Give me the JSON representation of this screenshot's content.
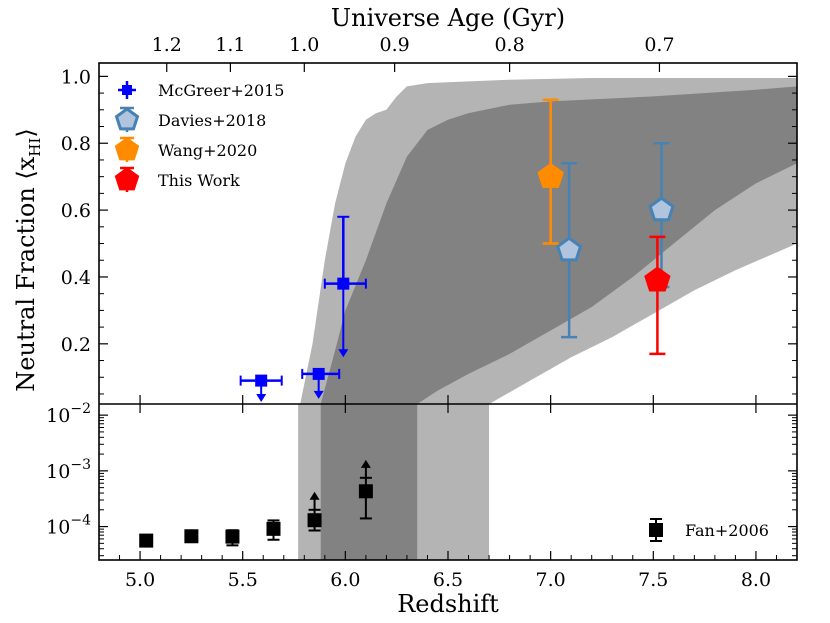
{
  "chart_data": {
    "type": "scatter",
    "title": "",
    "xlabel": "Redshift",
    "top_xlabel": "Universe Age (Gyr)",
    "ylabel": "Neutral Fraction ⟨x",
    "ylabel_sub": "HI",
    "ylabel_close": "⟩",
    "xlim": [
      4.8,
      8.2
    ],
    "x_ticks": [
      5.0,
      5.5,
      6.0,
      6.5,
      7.0,
      7.5,
      8.0
    ],
    "x_tick_labels": [
      "5.0",
      "5.5",
      "6.0",
      "6.5",
      "7.0",
      "7.5",
      "8.0"
    ],
    "top_ticks": [
      {
        "label": "1.2",
        "z": 5.13
      },
      {
        "label": "1.1",
        "z": 5.44
      },
      {
        "label": "1.0",
        "z": 5.8
      },
      {
        "label": "0.9",
        "z": 6.24
      },
      {
        "label": "0.8",
        "z": 6.8
      },
      {
        "label": "0.7",
        "z": 7.53
      }
    ],
    "upper_panel": {
      "yscale": "linear",
      "ylim": [
        0.02,
        1.04
      ],
      "y_ticks": [
        0.2,
        0.4,
        0.6,
        0.8,
        1.0
      ],
      "y_tick_labels": [
        "0.2",
        "0.4",
        "0.6",
        "0.8",
        "1.0"
      ],
      "bands": [
        {
          "name": "outer",
          "color": "#b4b4b4",
          "upper": [
            [
              5.78,
              0.02
            ],
            [
              5.84,
              0.2
            ],
            [
              5.9,
              0.45
            ],
            [
              5.95,
              0.62
            ],
            [
              6.0,
              0.74
            ],
            [
              6.05,
              0.82
            ],
            [
              6.1,
              0.87
            ],
            [
              6.15,
              0.89
            ],
            [
              6.2,
              0.9
            ],
            [
              6.25,
              0.94
            ],
            [
              6.3,
              0.97
            ],
            [
              6.4,
              0.98
            ],
            [
              6.6,
              0.985
            ],
            [
              6.8,
              0.99
            ],
            [
              7.2,
              0.995
            ],
            [
              8.2,
              0.995
            ]
          ],
          "lower": [
            [
              5.78,
              0.02
            ],
            [
              6.7,
              0.02
            ],
            [
              6.9,
              0.09
            ],
            [
              7.1,
              0.16
            ],
            [
              7.3,
              0.22
            ],
            [
              7.5,
              0.29
            ],
            [
              7.7,
              0.36
            ],
            [
              7.9,
              0.42
            ],
            [
              8.2,
              0.5
            ]
          ]
        },
        {
          "name": "inner",
          "color": "#828282",
          "upper": [
            [
              5.88,
              0.02
            ],
            [
              5.95,
              0.18
            ],
            [
              6.0,
              0.3
            ],
            [
              6.1,
              0.45
            ],
            [
              6.2,
              0.62
            ],
            [
              6.3,
              0.76
            ],
            [
              6.4,
              0.84
            ],
            [
              6.5,
              0.87
            ],
            [
              6.6,
              0.89
            ],
            [
              6.8,
              0.915
            ],
            [
              7.0,
              0.925
            ],
            [
              7.5,
              0.94
            ],
            [
              8.0,
              0.96
            ],
            [
              8.2,
              0.97
            ]
          ],
          "lower": [
            [
              5.88,
              0.02
            ],
            [
              6.35,
              0.02
            ],
            [
              6.45,
              0.06
            ],
            [
              6.6,
              0.11
            ],
            [
              6.8,
              0.17
            ],
            [
              7.0,
              0.24
            ],
            [
              7.2,
              0.31
            ],
            [
              7.4,
              0.4
            ],
            [
              7.6,
              0.5
            ],
            [
              7.8,
              0.6
            ],
            [
              8.0,
              0.68
            ],
            [
              8.2,
              0.74
            ]
          ]
        }
      ],
      "series": [
        {
          "name": "McGreer+2015",
          "color": "#0000ff",
          "marker": "square",
          "points": [
            {
              "x": 5.59,
              "y": 0.09,
              "xerr": [
                0.1,
                0.1
              ],
              "upper_limit": true
            },
            {
              "x": 5.87,
              "y": 0.11,
              "xerr": [
                0.08,
                0.1
              ],
              "upper_limit": true
            },
            {
              "x": 5.99,
              "y": 0.38,
              "xerr": [
                0.09,
                0.11
              ],
              "yerr": [
                0,
                0.2
              ],
              "upper_limit": true
            }
          ]
        },
        {
          "name": "Davies+2018",
          "color": "#4682b4",
          "fill": "#b0c4de",
          "marker": "pentagon",
          "points": [
            {
              "x": 7.09,
              "y": 0.48,
              "yerr": [
                0.26,
                0.26
              ]
            },
            {
              "x": 7.54,
              "y": 0.6,
              "yerr": [
                0.23,
                0.2
              ]
            }
          ]
        },
        {
          "name": "Wang+2020",
          "color": "#ff8c00",
          "fill": "#ff8c00",
          "marker": "pentagon",
          "points": [
            {
              "x": 7.0,
              "y": 0.7,
              "yerr": [
                0.2,
                0.23
              ]
            }
          ]
        },
        {
          "name": "This Work",
          "color": "#ff0000",
          "fill": "#ff0000",
          "marker": "pentagon",
          "points": [
            {
              "x": 7.52,
              "y": 0.39,
              "yerr": [
                0.22,
                0.13
              ]
            }
          ]
        }
      ],
      "legend_position": "top-left"
    },
    "lower_panel": {
      "yscale": "log",
      "ylim_log10": [
        -4.6,
        -1.8
      ],
      "y_ticks_log10": [
        -4,
        -3,
        -2
      ],
      "y_tick_labels": [
        {
          "base": "10",
          "exp": "−4"
        },
        {
          "base": "10",
          "exp": "−3"
        },
        {
          "base": "10",
          "exp": "−2"
        }
      ],
      "bands": [
        {
          "name": "outer",
          "color": "#b4b4b4",
          "x_range": [
            5.77,
            6.7
          ]
        },
        {
          "name": "inner",
          "color": "#828282",
          "x_range": [
            5.88,
            6.35
          ]
        }
      ],
      "series": [
        {
          "name": "Fan+2006",
          "color": "#000000",
          "marker": "square",
          "points": [
            {
              "x": 5.03,
              "y": 5.6e-05,
              "yerr": [
                6e-06,
                6e-06
              ]
            },
            {
              "x": 5.25,
              "y": 6.7e-05,
              "yerr": [
                9e-06,
                9e-06
              ]
            },
            {
              "x": 5.45,
              "y": 6.6e-05,
              "yerr": [
                2e-05,
                2e-05
              ]
            },
            {
              "x": 5.65,
              "y": 9.1e-05,
              "yerr": [
                3.3e-05,
                3.8e-05
              ]
            },
            {
              "x": 5.85,
              "y": 0.00013,
              "yerr": [
                4.5e-05,
                7e-05
              ],
              "lower_limit": true
            },
            {
              "x": 6.1,
              "y": 0.00043,
              "yerr": [
                0.00029,
                0.00032
              ],
              "lower_limit": true
            }
          ]
        }
      ],
      "legend_position": "bottom-right"
    }
  }
}
